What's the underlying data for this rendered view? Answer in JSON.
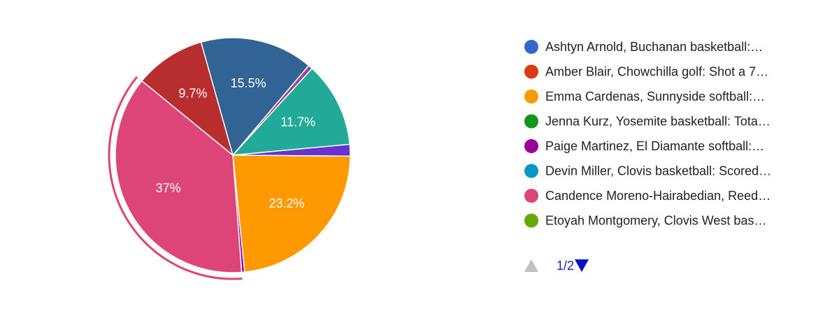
{
  "chart_data": {
    "type": "pie",
    "values": [
      15.5,
      0.6,
      11.7,
      1.6,
      23.2,
      0.4,
      37,
      9.7
    ],
    "value_labels": [
      "15.5%",
      null,
      "11.7%",
      null,
      "23.2%",
      null,
      "37%",
      "9.7%"
    ],
    "colors": [
      "#316395",
      "#994499",
      "#22aa99",
      "#6633cc",
      "#ff9900",
      "#990099",
      "#dd4477",
      "#b82e2e"
    ],
    "selected": 6,
    "legend_position": "right",
    "legend_entries": [
      {
        "name": "Ashtyn Arnold, Buchanan basketball:…",
        "color": "#3366cc"
      },
      {
        "name": "Amber Blair, Chowchilla golf: Shot a 7…",
        "color": "#dc3912"
      },
      {
        "name": "Emma Cardenas, Sunnyside softball:…",
        "color": "#ff9900"
      },
      {
        "name": "Jenna Kurz, Yosemite basketball: Tota…",
        "color": "#109618"
      },
      {
        "name": "Paige Martinez, El Diamante softball:…",
        "color": "#990099"
      },
      {
        "name": "Devin Miller, Clovis basketball: Scored…",
        "color": "#0099c6"
      },
      {
        "name": "Candence Moreno-Hairabedian, Reed…",
        "color": "#dd4477"
      },
      {
        "name": "Etoyah Montgomery, Clovis West bas…",
        "color": "#66aa00"
      }
    ],
    "legend_page": "1/2"
  }
}
